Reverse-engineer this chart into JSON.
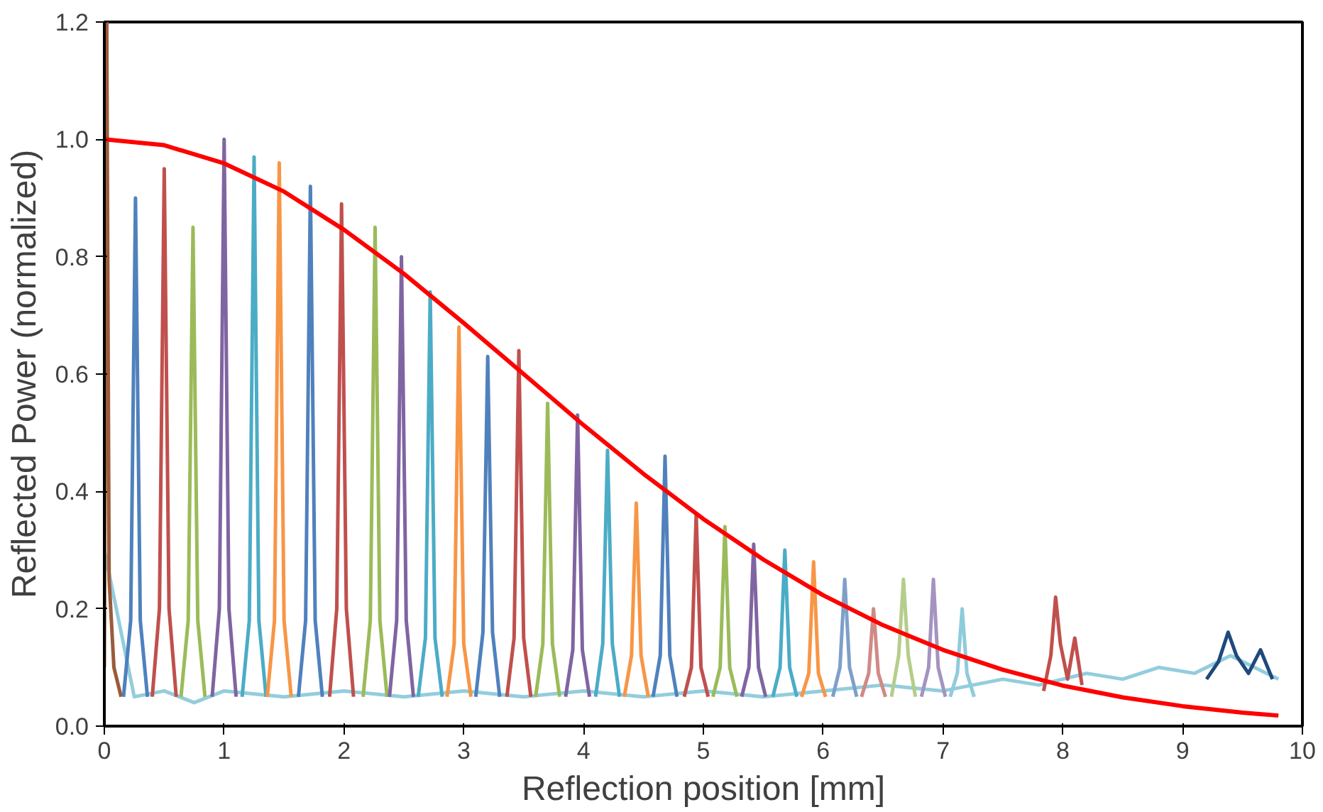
{
  "chart_data": {
    "type": "line",
    "xlabel": "Reflection position [mm]",
    "ylabel": "Reflected Power (normalized)",
    "xlim": [
      0,
      10
    ],
    "ylim": [
      0,
      1.2
    ],
    "xticks": [
      0,
      1,
      2,
      3,
      4,
      5,
      6,
      7,
      8,
      9,
      10
    ],
    "yticks": [
      {
        "value": 0,
        "label": "0.0"
      },
      {
        "value": 0.2,
        "label": "0.2"
      },
      {
        "value": 0.4,
        "label": "0.4"
      },
      {
        "value": 0.6,
        "label": "0.6"
      },
      {
        "value": 0.8,
        "label": "0.8"
      },
      {
        "value": 1.0,
        "label": "1.0"
      },
      {
        "value": 1.2,
        "label": "1.2"
      }
    ],
    "grid": false,
    "marker": "none",
    "line_style": "solid",
    "series": [
      {
        "color": "#93cddd",
        "x": [
          0,
          0.25,
          0.5,
          0.75,
          1,
          1.5,
          2,
          2.5,
          3,
          3.5,
          4,
          4.5,
          5,
          5.5,
          6,
          6.5,
          7,
          7.5,
          7.8,
          8.2,
          8.5,
          8.8,
          9.1,
          9.4,
          9.6,
          9.8
        ],
        "values": [
          0.3,
          0.05,
          0.06,
          0.04,
          0.06,
          0.05,
          0.06,
          0.05,
          0.06,
          0.05,
          0.06,
          0.05,
          0.06,
          0.05,
          0.06,
          0.07,
          0.06,
          0.08,
          0.07,
          0.09,
          0.08,
          0.1,
          0.09,
          0.12,
          0.1,
          0.08
        ]
      },
      {
        "color": "#9b5b3a",
        "x": [
          0.0,
          0.02,
          0.04,
          0.08,
          0.14
        ],
        "values": [
          0.1,
          1.2,
          0.25,
          0.1,
          0.05
        ]
      },
      {
        "color": "#4f81bd",
        "x": [
          0.16,
          0.22,
          0.26,
          0.3,
          0.36
        ],
        "values": [
          0.05,
          0.18,
          0.9,
          0.18,
          0.05
        ]
      },
      {
        "color": "#c0504d",
        "x": [
          0.4,
          0.46,
          0.5,
          0.54,
          0.6
        ],
        "values": [
          0.05,
          0.2,
          0.95,
          0.2,
          0.05
        ]
      },
      {
        "color": "#9bbb59",
        "x": [
          0.64,
          0.7,
          0.74,
          0.78,
          0.84
        ],
        "values": [
          0.05,
          0.18,
          0.85,
          0.18,
          0.05
        ]
      },
      {
        "color": "#8064a2",
        "x": [
          0.9,
          0.96,
          1.0,
          1.04,
          1.1
        ],
        "values": [
          0.05,
          0.2,
          1.0,
          0.2,
          0.05
        ]
      },
      {
        "color": "#4bacc6",
        "x": [
          1.15,
          1.21,
          1.25,
          1.29,
          1.35
        ],
        "values": [
          0.05,
          0.18,
          0.97,
          0.18,
          0.05
        ]
      },
      {
        "color": "#f79646",
        "x": [
          1.36,
          1.42,
          1.46,
          1.5,
          1.56
        ],
        "values": [
          0.05,
          0.18,
          0.96,
          0.18,
          0.05
        ]
      },
      {
        "color": "#4f81bd",
        "x": [
          1.62,
          1.68,
          1.72,
          1.76,
          1.82
        ],
        "values": [
          0.05,
          0.18,
          0.92,
          0.18,
          0.05
        ]
      },
      {
        "color": "#c0504d",
        "x": [
          1.88,
          1.94,
          1.98,
          2.02,
          2.08
        ],
        "values": [
          0.05,
          0.2,
          0.89,
          0.2,
          0.05
        ]
      },
      {
        "color": "#9bbb59",
        "x": [
          2.16,
          2.22,
          2.26,
          2.3,
          2.36
        ],
        "values": [
          0.05,
          0.18,
          0.85,
          0.18,
          0.05
        ]
      },
      {
        "color": "#8064a2",
        "x": [
          2.38,
          2.44,
          2.48,
          2.52,
          2.58
        ],
        "values": [
          0.05,
          0.18,
          0.8,
          0.18,
          0.05
        ]
      },
      {
        "color": "#4bacc6",
        "x": [
          2.62,
          2.68,
          2.72,
          2.76,
          2.82
        ],
        "values": [
          0.05,
          0.15,
          0.74,
          0.15,
          0.05
        ]
      },
      {
        "color": "#f79646",
        "x": [
          2.86,
          2.92,
          2.96,
          3.0,
          3.06
        ],
        "values": [
          0.05,
          0.14,
          0.68,
          0.14,
          0.05
        ]
      },
      {
        "color": "#4f81bd",
        "x": [
          3.1,
          3.16,
          3.2,
          3.24,
          3.3
        ],
        "values": [
          0.05,
          0.16,
          0.63,
          0.16,
          0.05
        ]
      },
      {
        "color": "#c0504d",
        "x": [
          3.36,
          3.42,
          3.46,
          3.5,
          3.56
        ],
        "values": [
          0.05,
          0.15,
          0.64,
          0.15,
          0.05
        ]
      },
      {
        "color": "#9bbb59",
        "x": [
          3.6,
          3.66,
          3.7,
          3.74,
          3.8
        ],
        "values": [
          0.05,
          0.14,
          0.55,
          0.14,
          0.05
        ]
      },
      {
        "color": "#8064a2",
        "x": [
          3.85,
          3.91,
          3.95,
          3.99,
          4.05
        ],
        "values": [
          0.05,
          0.13,
          0.53,
          0.13,
          0.05
        ]
      },
      {
        "color": "#4bacc6",
        "x": [
          4.1,
          4.16,
          4.2,
          4.24,
          4.3
        ],
        "values": [
          0.05,
          0.14,
          0.47,
          0.14,
          0.05
        ]
      },
      {
        "color": "#f79646",
        "x": [
          4.34,
          4.4,
          4.44,
          4.48,
          4.54
        ],
        "values": [
          0.05,
          0.12,
          0.38,
          0.12,
          0.05
        ]
      },
      {
        "color": "#4f81bd",
        "x": [
          4.58,
          4.64,
          4.68,
          4.72,
          4.78
        ],
        "values": [
          0.05,
          0.12,
          0.46,
          0.12,
          0.05
        ]
      },
      {
        "color": "#c0504d",
        "x": [
          4.84,
          4.9,
          4.94,
          4.98,
          5.04
        ],
        "values": [
          0.05,
          0.1,
          0.36,
          0.1,
          0.05
        ]
      },
      {
        "color": "#9bbb59",
        "x": [
          5.08,
          5.14,
          5.18,
          5.22,
          5.28
        ],
        "values": [
          0.05,
          0.1,
          0.34,
          0.1,
          0.05
        ]
      },
      {
        "color": "#8064a2",
        "x": [
          5.32,
          5.38,
          5.42,
          5.46,
          5.52
        ],
        "values": [
          0.05,
          0.1,
          0.31,
          0.1,
          0.05
        ]
      },
      {
        "color": "#4bacc6",
        "x": [
          5.58,
          5.64,
          5.68,
          5.72,
          5.78
        ],
        "values": [
          0.05,
          0.1,
          0.3,
          0.1,
          0.05
        ]
      },
      {
        "color": "#f79646",
        "x": [
          5.82,
          5.88,
          5.92,
          5.96,
          6.02
        ],
        "values": [
          0.05,
          0.09,
          0.28,
          0.09,
          0.05
        ]
      },
      {
        "color": "#7f9fc9",
        "x": [
          6.08,
          6.14,
          6.18,
          6.22,
          6.28
        ],
        "values": [
          0.05,
          0.1,
          0.25,
          0.1,
          0.05
        ]
      },
      {
        "color": "#d08a85",
        "x": [
          6.32,
          6.38,
          6.42,
          6.46,
          6.52
        ],
        "values": [
          0.05,
          0.09,
          0.2,
          0.09,
          0.05
        ]
      },
      {
        "color": "#b5cd8a",
        "x": [
          6.57,
          6.63,
          6.67,
          6.71,
          6.77
        ],
        "values": [
          0.05,
          0.12,
          0.25,
          0.12,
          0.05
        ]
      },
      {
        "color": "#a593c0",
        "x": [
          6.82,
          6.88,
          6.92,
          6.96,
          7.02
        ],
        "values": [
          0.05,
          0.1,
          0.25,
          0.1,
          0.05
        ]
      },
      {
        "color": "#8fcbdc",
        "x": [
          7.06,
          7.12,
          7.16,
          7.2,
          7.26
        ],
        "values": [
          0.05,
          0.09,
          0.2,
          0.09,
          0.05
        ]
      },
      {
        "color": "#c0504d",
        "x": [
          7.84,
          7.9,
          7.94,
          7.98,
          8.04,
          8.1,
          8.16
        ],
        "values": [
          0.06,
          0.12,
          0.22,
          0.14,
          0.08,
          0.15,
          0.07
        ]
      },
      {
        "color": "#1f497d",
        "x": [
          9.2,
          9.3,
          9.38,
          9.45,
          9.55,
          9.65,
          9.75
        ],
        "values": [
          0.08,
          0.11,
          0.16,
          0.12,
          0.09,
          0.13,
          0.08
        ]
      },
      {
        "color": "#ff0000",
        "x": [
          0,
          0.5,
          1,
          1.5,
          2,
          2.5,
          3,
          3.5,
          4,
          4.5,
          5,
          5.5,
          6,
          6.5,
          7,
          7.5,
          8,
          8.5,
          9,
          9.5,
          9.8
        ],
        "values": [
          1.0,
          0.99,
          0.959,
          0.911,
          0.846,
          0.771,
          0.687,
          0.6,
          0.513,
          0.43,
          0.353,
          0.284,
          0.223,
          0.172,
          0.13,
          0.096,
          0.069,
          0.049,
          0.034,
          0.023,
          0.018
        ]
      }
    ]
  }
}
